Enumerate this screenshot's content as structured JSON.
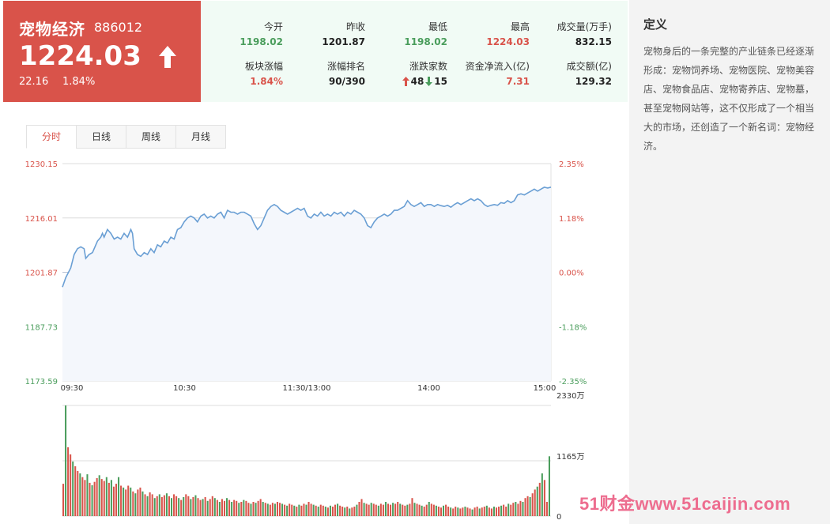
{
  "quote": {
    "name": "宠物经济",
    "code": "886012",
    "price": "1224.03",
    "change": "22.16",
    "change_pct": "1.84%"
  },
  "stats": [
    {
      "label": "今开",
      "value": "1198.02",
      "color": "green"
    },
    {
      "label": "昨收",
      "value": "1201.87",
      "color": "dark"
    },
    {
      "label": "最低",
      "value": "1198.02",
      "color": "green"
    },
    {
      "label": "最高",
      "value": "1224.03",
      "color": "red"
    },
    {
      "label": "成交量(万手)",
      "value": "832.15",
      "color": "dark"
    },
    {
      "label": "板块涨幅",
      "value": "1.84%",
      "color": "red"
    },
    {
      "label": "涨幅排名",
      "value": "90/390",
      "color": "dark"
    },
    {
      "label": "涨跌家数",
      "up": "48",
      "down": "15",
      "color": "dark"
    },
    {
      "label": "资金净流入(亿)",
      "value": "7.31",
      "color": "red"
    },
    {
      "label": "成交额(亿)",
      "value": "129.32",
      "color": "dark"
    }
  ],
  "tabs": [
    "分时",
    "日线",
    "周线",
    "月线"
  ],
  "definition": {
    "title": "定义",
    "text": "宠物身后的一条完整的产业链条已经逐渐形成：宠物饲养场、宠物医院、宠物美容店、宠物食品店、宠物寄养店、宠物墓，甚至宠物网站等，这不仅形成了一个相当大的市场，还创造了一个新名词：宠物经济。"
  },
  "watermark": "51财金www.51caijin.com",
  "colors": {
    "red": "#d9534a",
    "green": "#4a9d5c",
    "line": "#6a9fd4",
    "area": "#f4f7fc"
  },
  "chart_data": {
    "type": "line",
    "x_ticks": [
      "09:30",
      "10:30",
      "11:30/13:00",
      "14:00",
      "15:00"
    ],
    "y_ticks_left": [
      "1230.15",
      "1216.01",
      "1201.87",
      "1187.73",
      "1173.59"
    ],
    "y_ticks_right": [
      "2.35%",
      "1.18%",
      "0.00%",
      "-1.18%",
      "-2.35%"
    ],
    "ylim": [
      1173.59,
      1230.15
    ],
    "prev_close": 1201.87,
    "price_points": [
      [
        0,
        1198.0
      ],
      [
        2,
        1200.5
      ],
      [
        5,
        1203
      ],
      [
        7,
        1206.5
      ],
      [
        9,
        1208
      ],
      [
        11,
        1208.5
      ],
      [
        13,
        1208
      ],
      [
        14,
        1205.5
      ],
      [
        16,
        1206.5
      ],
      [
        18,
        1207
      ],
      [
        21,
        1210
      ],
      [
        23,
        1211
      ],
      [
        24,
        1212
      ],
      [
        25,
        1211
      ],
      [
        27,
        1213
      ],
      [
        29,
        1212
      ],
      [
        31,
        1210.5
      ],
      [
        33,
        1211
      ],
      [
        35,
        1210.5
      ],
      [
        37,
        1212
      ],
      [
        39,
        1211
      ],
      [
        41,
        1213
      ],
      [
        42,
        1212
      ],
      [
        43,
        1208
      ],
      [
        45,
        1206.5
      ],
      [
        47,
        1206
      ],
      [
        49,
        1207
      ],
      [
        51,
        1206.5
      ],
      [
        53,
        1208
      ],
      [
        55,
        1207
      ],
      [
        57,
        1209
      ],
      [
        59,
        1208.5
      ],
      [
        61,
        1210
      ],
      [
        63,
        1209.5
      ],
      [
        65,
        1211
      ],
      [
        67,
        1210.5
      ],
      [
        69,
        1213
      ],
      [
        71,
        1213.5
      ],
      [
        73,
        1215
      ],
      [
        75,
        1216
      ],
      [
        77,
        1216.5
      ],
      [
        79,
        1216
      ],
      [
        81,
        1215
      ],
      [
        83,
        1216.5
      ],
      [
        85,
        1217
      ],
      [
        87,
        1216
      ],
      [
        89,
        1216.5
      ],
      [
        91,
        1216
      ],
      [
        93,
        1217
      ],
      [
        95,
        1217.5
      ],
      [
        97,
        1216
      ],
      [
        99,
        1218
      ],
      [
        101,
        1217.5
      ],
      [
        103,
        1217.5
      ],
      [
        105,
        1217
      ],
      [
        107,
        1217.5
      ],
      [
        109,
        1217.5
      ],
      [
        111,
        1217
      ],
      [
        113,
        1216.5
      ],
      [
        115,
        1214.5
      ],
      [
        117,
        1213
      ],
      [
        119,
        1214
      ],
      [
        121,
        1216
      ],
      [
        123,
        1218
      ],
      [
        125,
        1219
      ],
      [
        127,
        1219.5
      ],
      [
        129,
        1219
      ],
      [
        131,
        1218
      ],
      [
        133,
        1217.5
      ],
      [
        135,
        1217
      ],
      [
        137,
        1217.5
      ],
      [
        139,
        1218
      ],
      [
        141,
        1218.5
      ],
      [
        143,
        1218
      ],
      [
        145,
        1218.5
      ],
      [
        147,
        1216.5
      ],
      [
        149,
        1216
      ],
      [
        151,
        1217
      ],
      [
        153,
        1216.5
      ],
      [
        155,
        1217.5
      ],
      [
        157,
        1216.5
      ],
      [
        159,
        1217
      ],
      [
        161,
        1216.5
      ],
      [
        163,
        1217.5
      ],
      [
        165,
        1217
      ],
      [
        167,
        1217.5
      ],
      [
        169,
        1216.5
      ],
      [
        171,
        1217.5
      ],
      [
        173,
        1217
      ],
      [
        175,
        1218
      ],
      [
        177,
        1217.5
      ],
      [
        179,
        1217
      ],
      [
        181,
        1216
      ],
      [
        183,
        1214
      ],
      [
        185,
        1213.5
      ],
      [
        187,
        1215
      ],
      [
        189,
        1216
      ],
      [
        191,
        1216.5
      ],
      [
        193,
        1217
      ],
      [
        195,
        1216.5
      ],
      [
        197,
        1217
      ],
      [
        199,
        1218
      ],
      [
        201,
        1218
      ],
      [
        203,
        1218.5
      ],
      [
        205,
        1219
      ],
      [
        207,
        1220.5
      ],
      [
        209,
        1219.5
      ],
      [
        211,
        1219
      ],
      [
        213,
        1219.5
      ],
      [
        215,
        1220
      ],
      [
        217,
        1219
      ],
      [
        219,
        1219.5
      ],
      [
        221,
        1219.5
      ],
      [
        223,
        1219
      ],
      [
        225,
        1219.5
      ],
      [
        227,
        1219.2
      ],
      [
        229,
        1219
      ],
      [
        231,
        1219.3
      ],
      [
        233,
        1218.8
      ],
      [
        235,
        1219.5
      ],
      [
        237,
        1220
      ],
      [
        239,
        1219.5
      ],
      [
        241,
        1220
      ],
      [
        243,
        1220.5
      ],
      [
        245,
        1221
      ],
      [
        247,
        1220.5
      ],
      [
        249,
        1221
      ],
      [
        251,
        1220.5
      ],
      [
        253,
        1219.5
      ],
      [
        255,
        1219
      ],
      [
        257,
        1219.3
      ],
      [
        259,
        1219.5
      ],
      [
        261,
        1219.3
      ],
      [
        263,
        1220
      ],
      [
        265,
        1219.8
      ],
      [
        267,
        1220.5
      ],
      [
        269,
        1220
      ],
      [
        271,
        1220.5
      ],
      [
        273,
        1222
      ],
      [
        275,
        1222.3
      ],
      [
        277,
        1222
      ],
      [
        279,
        1222.5
      ],
      [
        281,
        1223
      ],
      [
        283,
        1223.5
      ],
      [
        285,
        1223
      ],
      [
        287,
        1223.5
      ],
      [
        289,
        1224
      ],
      [
        291,
        1223.8
      ],
      [
        293,
        1224.03
      ]
    ],
    "volume_ticks": [
      "2330万",
      "1165万",
      "0"
    ],
    "volume_max": 2330,
    "volume_bars": [
      {
        "v": 680,
        "c": "r"
      },
      {
        "v": 2330,
        "c": "g"
      },
      {
        "v": 1450,
        "c": "r"
      },
      {
        "v": 1300,
        "c": "r"
      },
      {
        "v": 1150,
        "c": "g"
      },
      {
        "v": 1050,
        "c": "r"
      },
      {
        "v": 950,
        "c": "r"
      },
      {
        "v": 900,
        "c": "g"
      },
      {
        "v": 820,
        "c": "r"
      },
      {
        "v": 760,
        "c": "r"
      },
      {
        "v": 880,
        "c": "g"
      },
      {
        "v": 700,
        "c": "r"
      },
      {
        "v": 650,
        "c": "g"
      },
      {
        "v": 720,
        "c": "r"
      },
      {
        "v": 800,
        "c": "r"
      },
      {
        "v": 860,
        "c": "g"
      },
      {
        "v": 780,
        "c": "r"
      },
      {
        "v": 740,
        "c": "r"
      },
      {
        "v": 820,
        "c": "g"
      },
      {
        "v": 700,
        "c": "r"
      },
      {
        "v": 760,
        "c": "g"
      },
      {
        "v": 620,
        "c": "r"
      },
      {
        "v": 680,
        "c": "r"
      },
      {
        "v": 820,
        "c": "g"
      },
      {
        "v": 640,
        "c": "r"
      },
      {
        "v": 600,
        "c": "g"
      },
      {
        "v": 560,
        "c": "r"
      },
      {
        "v": 640,
        "c": "r"
      },
      {
        "v": 600,
        "c": "g"
      },
      {
        "v": 520,
        "c": "r"
      },
      {
        "v": 480,
        "c": "g"
      },
      {
        "v": 560,
        "c": "r"
      },
      {
        "v": 600,
        "c": "r"
      },
      {
        "v": 520,
        "c": "g"
      },
      {
        "v": 460,
        "c": "r"
      },
      {
        "v": 420,
        "c": "g"
      },
      {
        "v": 500,
        "c": "r"
      },
      {
        "v": 460,
        "c": "r"
      },
      {
        "v": 380,
        "c": "g"
      },
      {
        "v": 420,
        "c": "r"
      },
      {
        "v": 460,
        "c": "g"
      },
      {
        "v": 400,
        "c": "r"
      },
      {
        "v": 440,
        "c": "r"
      },
      {
        "v": 480,
        "c": "g"
      },
      {
        "v": 420,
        "c": "r"
      },
      {
        "v": 380,
        "c": "g"
      },
      {
        "v": 460,
        "c": "r"
      },
      {
        "v": 420,
        "c": "r"
      },
      {
        "v": 380,
        "c": "g"
      },
      {
        "v": 340,
        "c": "r"
      },
      {
        "v": 400,
        "c": "g"
      },
      {
        "v": 460,
        "c": "r"
      },
      {
        "v": 420,
        "c": "r"
      },
      {
        "v": 360,
        "c": "g"
      },
      {
        "v": 400,
        "c": "r"
      },
      {
        "v": 440,
        "c": "g"
      },
      {
        "v": 380,
        "c": "r"
      },
      {
        "v": 340,
        "c": "r"
      },
      {
        "v": 360,
        "c": "g"
      },
      {
        "v": 400,
        "c": "r"
      },
      {
        "v": 320,
        "c": "g"
      },
      {
        "v": 360,
        "c": "r"
      },
      {
        "v": 420,
        "c": "r"
      },
      {
        "v": 380,
        "c": "g"
      },
      {
        "v": 340,
        "c": "r"
      },
      {
        "v": 300,
        "c": "g"
      },
      {
        "v": 360,
        "c": "r"
      },
      {
        "v": 320,
        "c": "r"
      },
      {
        "v": 380,
        "c": "g"
      },
      {
        "v": 340,
        "c": "r"
      },
      {
        "v": 300,
        "c": "g"
      },
      {
        "v": 340,
        "c": "r"
      },
      {
        "v": 320,
        "c": "r"
      },
      {
        "v": 280,
        "c": "g"
      },
      {
        "v": 300,
        "c": "r"
      },
      {
        "v": 340,
        "c": "g"
      },
      {
        "v": 320,
        "c": "r"
      },
      {
        "v": 280,
        "c": "r"
      },
      {
        "v": 260,
        "c": "g"
      },
      {
        "v": 300,
        "c": "r"
      },
      {
        "v": 280,
        "c": "g"
      },
      {
        "v": 320,
        "c": "r"
      },
      {
        "v": 360,
        "c": "r"
      },
      {
        "v": 300,
        "c": "g"
      },
      {
        "v": 280,
        "c": "r"
      },
      {
        "v": 260,
        "c": "g"
      },
      {
        "v": 240,
        "c": "r"
      },
      {
        "v": 280,
        "c": "r"
      },
      {
        "v": 260,
        "c": "g"
      },
      {
        "v": 300,
        "c": "r"
      },
      {
        "v": 280,
        "c": "r"
      },
      {
        "v": 260,
        "c": "g"
      },
      {
        "v": 240,
        "c": "r"
      },
      {
        "v": 220,
        "c": "g"
      },
      {
        "v": 260,
        "c": "r"
      },
      {
        "v": 240,
        "c": "r"
      },
      {
        "v": 220,
        "c": "g"
      },
      {
        "v": 200,
        "c": "r"
      },
      {
        "v": 240,
        "c": "g"
      },
      {
        "v": 220,
        "c": "r"
      },
      {
        "v": 260,
        "c": "r"
      },
      {
        "v": 240,
        "c": "g"
      },
      {
        "v": 300,
        "c": "r"
      },
      {
        "v": 260,
        "c": "r"
      },
      {
        "v": 240,
        "c": "g"
      },
      {
        "v": 220,
        "c": "r"
      },
      {
        "v": 200,
        "c": "g"
      },
      {
        "v": 240,
        "c": "r"
      },
      {
        "v": 220,
        "c": "r"
      },
      {
        "v": 200,
        "c": "g"
      },
      {
        "v": 180,
        "c": "r"
      },
      {
        "v": 220,
        "c": "g"
      },
      {
        "v": 200,
        "c": "r"
      },
      {
        "v": 240,
        "c": "r"
      },
      {
        "v": 260,
        "c": "g"
      },
      {
        "v": 220,
        "c": "r"
      },
      {
        "v": 200,
        "c": "r"
      },
      {
        "v": 180,
        "c": "g"
      },
      {
        "v": 200,
        "c": "r"
      },
      {
        "v": 160,
        "c": "g"
      },
      {
        "v": 180,
        "c": "r"
      },
      {
        "v": 200,
        "c": "r"
      },
      {
        "v": 240,
        "c": "g"
      },
      {
        "v": 300,
        "c": "r"
      },
      {
        "v": 360,
        "c": "r"
      },
      {
        "v": 280,
        "c": "g"
      },
      {
        "v": 260,
        "c": "r"
      },
      {
        "v": 240,
        "c": "r"
      },
      {
        "v": 280,
        "c": "g"
      },
      {
        "v": 260,
        "c": "r"
      },
      {
        "v": 240,
        "c": "r"
      },
      {
        "v": 220,
        "c": "g"
      },
      {
        "v": 260,
        "c": "r"
      },
      {
        "v": 240,
        "c": "r"
      },
      {
        "v": 300,
        "c": "g"
      },
      {
        "v": 260,
        "c": "r"
      },
      {
        "v": 240,
        "c": "r"
      },
      {
        "v": 280,
        "c": "g"
      },
      {
        "v": 260,
        "c": "r"
      },
      {
        "v": 300,
        "c": "r"
      },
      {
        "v": 260,
        "c": "g"
      },
      {
        "v": 240,
        "c": "r"
      },
      {
        "v": 220,
        "c": "r"
      },
      {
        "v": 240,
        "c": "g"
      },
      {
        "v": 260,
        "c": "r"
      },
      {
        "v": 380,
        "c": "r"
      },
      {
        "v": 280,
        "c": "g"
      },
      {
        "v": 260,
        "c": "r"
      },
      {
        "v": 240,
        "c": "r"
      },
      {
        "v": 220,
        "c": "g"
      },
      {
        "v": 200,
        "c": "r"
      },
      {
        "v": 240,
        "c": "r"
      },
      {
        "v": 300,
        "c": "g"
      },
      {
        "v": 260,
        "c": "r"
      },
      {
        "v": 240,
        "c": "r"
      },
      {
        "v": 220,
        "c": "g"
      },
      {
        "v": 200,
        "c": "r"
      },
      {
        "v": 180,
        "c": "r"
      },
      {
        "v": 220,
        "c": "g"
      },
      {
        "v": 240,
        "c": "r"
      },
      {
        "v": 200,
        "c": "r"
      },
      {
        "v": 180,
        "c": "g"
      },
      {
        "v": 160,
        "c": "r"
      },
      {
        "v": 200,
        "c": "r"
      },
      {
        "v": 180,
        "c": "g"
      },
      {
        "v": 160,
        "c": "r"
      },
      {
        "v": 180,
        "c": "r"
      },
      {
        "v": 200,
        "c": "g"
      },
      {
        "v": 180,
        "c": "r"
      },
      {
        "v": 160,
        "c": "r"
      },
      {
        "v": 140,
        "c": "g"
      },
      {
        "v": 180,
        "c": "r"
      },
      {
        "v": 200,
        "c": "r"
      },
      {
        "v": 160,
        "c": "g"
      },
      {
        "v": 180,
        "c": "r"
      },
      {
        "v": 200,
        "c": "r"
      },
      {
        "v": 220,
        "c": "g"
      },
      {
        "v": 180,
        "c": "r"
      },
      {
        "v": 160,
        "c": "r"
      },
      {
        "v": 200,
        "c": "g"
      },
      {
        "v": 180,
        "c": "r"
      },
      {
        "v": 200,
        "c": "r"
      },
      {
        "v": 220,
        "c": "g"
      },
      {
        "v": 240,
        "c": "r"
      },
      {
        "v": 200,
        "c": "r"
      },
      {
        "v": 260,
        "c": "g"
      },
      {
        "v": 240,
        "c": "r"
      },
      {
        "v": 280,
        "c": "r"
      },
      {
        "v": 300,
        "c": "g"
      },
      {
        "v": 260,
        "c": "r"
      },
      {
        "v": 320,
        "c": "r"
      },
      {
        "v": 300,
        "c": "g"
      },
      {
        "v": 380,
        "c": "r"
      },
      {
        "v": 420,
        "c": "r"
      },
      {
        "v": 400,
        "c": "g"
      },
      {
        "v": 480,
        "c": "r"
      },
      {
        "v": 560,
        "c": "r"
      },
      {
        "v": 620,
        "c": "g"
      },
      {
        "v": 700,
        "c": "r"
      },
      {
        "v": 900,
        "c": "g"
      },
      {
        "v": 760,
        "c": "r"
      },
      {
        "v": 300,
        "c": "r"
      },
      {
        "v": 1260,
        "c": "g"
      }
    ]
  }
}
